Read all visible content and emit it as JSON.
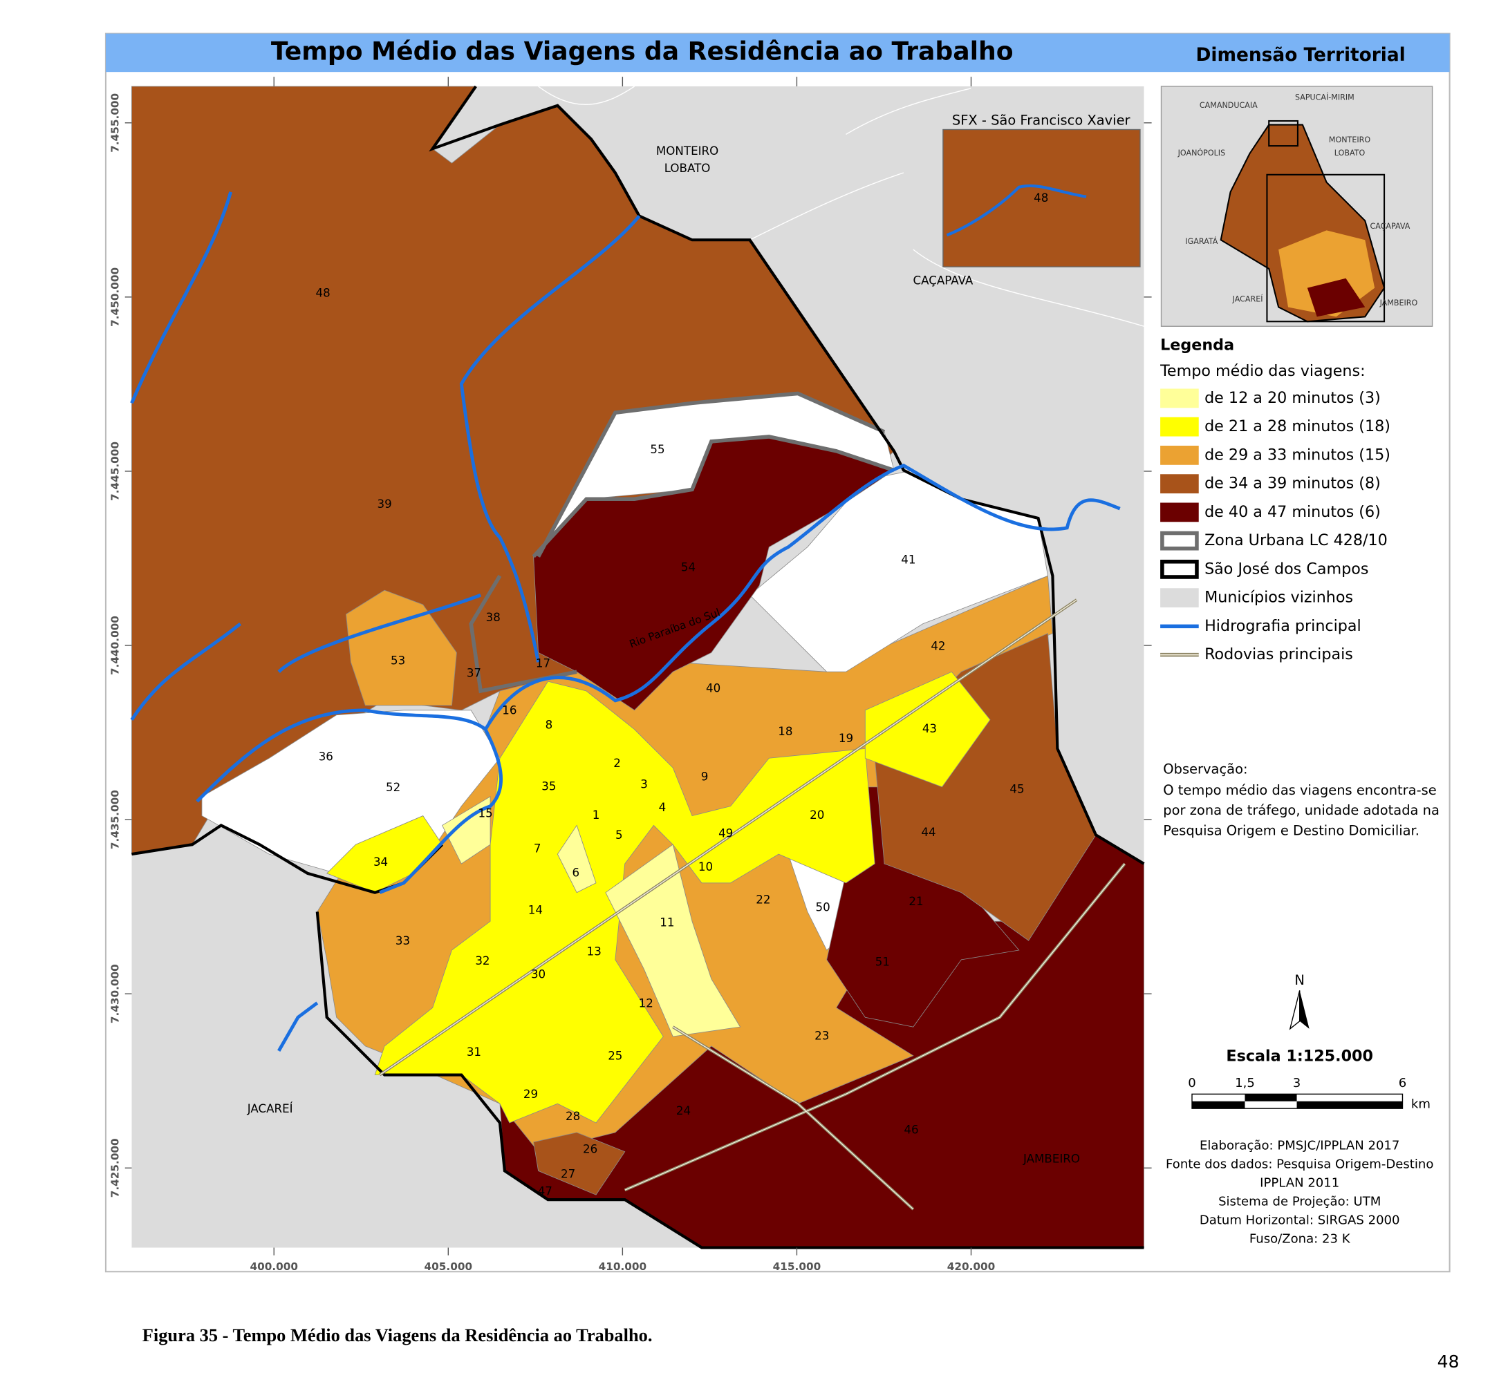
{
  "header": {
    "title": "Tempo Médio das Viagens da Residência ao Trabalho",
    "subtitle": "Dimensão Territorial"
  },
  "axes": {
    "y_labels": [
      "7.455.000",
      "7.450.000",
      "7.445.000",
      "7.440.000",
      "7.435.000",
      "7.430.000",
      "7.425.000"
    ],
    "x_labels": [
      "400.000",
      "405.000",
      "410.000",
      "415.000",
      "420.000"
    ]
  },
  "places": [
    "MONTEIRO",
    "LOBATO",
    "CAÇAPAVA",
    "JACAREÍ",
    "JAMBEIRO"
  ],
  "river_label": "Rio Paraíba do Sul",
  "zones": [
    "48",
    "39",
    "55",
    "54",
    "41",
    "38",
    "53",
    "37",
    "17",
    "16",
    "8",
    "42",
    "40",
    "18",
    "19",
    "43",
    "36",
    "52",
    "35",
    "2",
    "3",
    "9",
    "45",
    "1",
    "4",
    "15",
    "20",
    "5",
    "49",
    "44",
    "7",
    "34",
    "6",
    "10",
    "21",
    "22",
    "14",
    "50",
    "11",
    "33",
    "13",
    "51",
    "32",
    "30",
    "12",
    "23",
    "31",
    "25",
    "29",
    "24",
    "46",
    "28",
    "26",
    "27",
    "47"
  ],
  "inset": {
    "title": "SFX - São Francisco Xavier",
    "zone": "48"
  },
  "locator": [
    "CAMANDUCAIA",
    "SAPUCAÍ-MIRIM",
    "MONTEIRO",
    "LOBATO",
    "JOANÓPOLIS",
    "IGARATÁ",
    "CAÇAPAVA",
    "JACAREÍ",
    "JAMBEIRO"
  ],
  "legend": {
    "title": "Legenda",
    "subtitle": "Tempo médio das viagens:",
    "items": [
      {
        "label": "de 12 a 20 minutos (3)",
        "color": "#ffff99"
      },
      {
        "label": "de 21 a 28 minutos (18)",
        "color": "#ffff00"
      },
      {
        "label": "de 29 a 33 minutos (15)",
        "color": "#eba232"
      },
      {
        "label": "de 34 a 39 minutos (8)",
        "color": "#a8531a"
      },
      {
        "label": "de 40 a 47 minutos (6)",
        "color": "#6b0000"
      },
      {
        "label": "Zona Urbana LC 428/10",
        "color": "#6e6e6e"
      },
      {
        "label": "São José dos Campos",
        "color": "#000000"
      },
      {
        "label": "Municípios vizinhos",
        "color": "#dcdcdc"
      },
      {
        "label": "Hidrografia principal",
        "color": "#1a6fe0"
      },
      {
        "label": "Rodovias principais",
        "color": "#8c8464"
      }
    ]
  },
  "note": {
    "title": "Observação:",
    "lines": [
      "O tempo médio das viagens encontra-se",
      "por zona de tráfego, unidade adotada na",
      "Pesquisa Origem e Destino Domiciliar."
    ]
  },
  "north": "N",
  "scale": {
    "title": "Escala 1:125.000",
    "ticks": [
      "0",
      "1,5",
      "3",
      "6"
    ],
    "unit": "km"
  },
  "credits": [
    "Elaboração: PMSJC/IPPLAN 2017",
    "Fonte dos dados: Pesquisa Origem-Destino",
    "IPPLAN 2011",
    "Sistema de Projeção: UTM",
    "Datum Horizontal: SIRGAS 2000",
    "Fuso/Zona: 23 K"
  ],
  "caption": "Figura 35 - Tempo Médio das Viagens da Residência ao Trabalho.",
  "page_number": "48"
}
